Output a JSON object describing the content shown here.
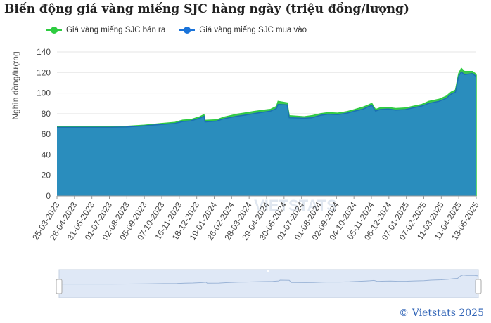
{
  "title": "Biến động giá vàng miếng SJC hàng ngày (triệu đồng/lượng)",
  "copyright": "© Vietstats 2025",
  "watermark": "VIETSTATS",
  "legend": [
    {
      "name": "Giá vàng miếng SJC bán ra",
      "color": "#2ecc40"
    },
    {
      "name": "Giá vàng miếng SJC mua vào",
      "color": "#1a73d9"
    }
  ],
  "chart_data": {
    "type": "area",
    "title": "Biến động giá vàng miếng SJC hàng ngày (triệu đồng/lượng)",
    "ylabel": "Nghìn đồng/lượng",
    "xlabel": "",
    "ylim": [
      0,
      140
    ],
    "yticks": [
      0,
      20,
      40,
      60,
      80,
      100,
      120,
      140
    ],
    "grid": true,
    "legend_position": "top-left",
    "xticks": [
      "25-03-2023",
      "26-04-2023",
      "31-05-2023",
      "01-07-2023",
      "02-08-2023",
      "05-09-2023",
      "07-10-2023",
      "16-11-2023",
      "18-12-2023",
      "19-01-2024",
      "26-02-2024",
      "28-03-2024",
      "29-04-2024",
      "30-05-2024",
      "01-07-2024",
      "01-08-2024",
      "02-09-2024",
      "04-10-2024",
      "05-11-2024",
      "06-12-2024",
      "07-01-2025",
      "07-02-2025",
      "11-03-2025",
      "11-04-2025",
      "13-05-2025"
    ],
    "x": [
      "25-03-2023",
      "26-04-2023",
      "31-05-2023",
      "01-07-2023",
      "02-08-2023",
      "05-09-2023",
      "07-10-2023",
      "01-11-2023",
      "16-11-2023",
      "01-12-2023",
      "18-12-2023",
      "26-12-2023",
      "28-12-2023",
      "19-01-2024",
      "01-02-2024",
      "26-02-2024",
      "10-03-2024",
      "28-03-2024",
      "10-04-2024",
      "29-04-2024",
      "10-05-2024",
      "13-05-2024",
      "30-05-2024",
      "03-06-2024",
      "01-07-2024",
      "15-07-2024",
      "01-08-2024",
      "15-08-2024",
      "02-09-2024",
      "20-09-2024",
      "04-10-2024",
      "20-10-2024",
      "28-10-2024",
      "05-11-2024",
      "12-11-2024",
      "20-11-2024",
      "06-12-2024",
      "20-12-2024",
      "07-01-2025",
      "20-01-2025",
      "07-02-2025",
      "20-02-2025",
      "11-03-2025",
      "25-03-2025",
      "03-04-2025",
      "11-04-2025",
      "17-04-2025",
      "22-04-2025",
      "28-04-2025",
      "13-05-2025",
      "20-05-2025"
    ],
    "series": [
      {
        "name": "Giá vàng miếng SJC bán ra",
        "color": "#2ecc40",
        "values": [
          67.5,
          67.4,
          67.3,
          67.3,
          67.7,
          68.8,
          70.4,
          71.5,
          73.7,
          74.2,
          77.0,
          79.0,
          73.5,
          74.0,
          76.5,
          79.5,
          80.5,
          82.0,
          83.0,
          84.2,
          87.0,
          92.0,
          90.5,
          78.0,
          77.0,
          78.0,
          80.0,
          81.0,
          80.5,
          82.0,
          84.0,
          86.5,
          88.0,
          90.0,
          84.0,
          85.5,
          86.0,
          85.0,
          85.5,
          87.0,
          89.0,
          92.0,
          94.0,
          97.0,
          101.0,
          103.0,
          119.0,
          124.0,
          121.0,
          121.0,
          118.0
        ]
      },
      {
        "name": "Giá vàng miếng SJC mua vào",
        "color": "#1a73d9",
        "values": [
          66.8,
          66.8,
          66.7,
          66.8,
          67.0,
          68.2,
          69.5,
          70.5,
          72.4,
          73.0,
          75.5,
          77.5,
          72.0,
          72.8,
          75.0,
          77.5,
          78.5,
          80.0,
          81.0,
          82.5,
          85.0,
          89.0,
          88.5,
          76.0,
          75.5,
          76.0,
          78.5,
          79.5,
          79.0,
          80.5,
          82.5,
          84.5,
          86.5,
          88.0,
          82.5,
          84.0,
          84.5,
          83.5,
          84.0,
          85.5,
          87.5,
          90.0,
          92.0,
          95.0,
          99.0,
          101.0,
          116.5,
          120.5,
          118.0,
          119.0,
          116.0
        ]
      }
    ]
  }
}
